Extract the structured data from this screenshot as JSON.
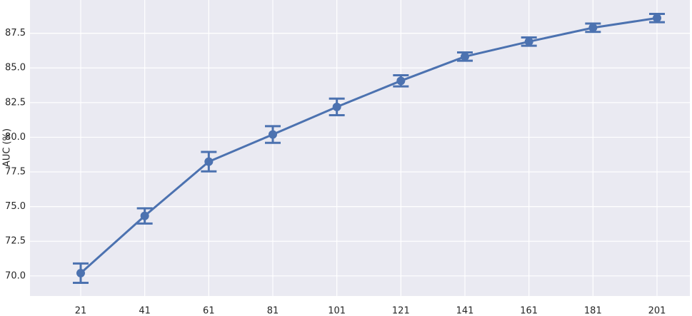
{
  "chart_data": {
    "type": "line",
    "y_label": "AUC (%)",
    "categories": [
      "21",
      "41",
      "61",
      "81",
      "101",
      "121",
      "141",
      "161",
      "181",
      "201"
    ],
    "series": [
      {
        "color": "#4c72b0",
        "values": [
          70.2,
          74.33,
          78.24,
          80.2,
          82.19,
          84.07,
          85.82,
          86.9,
          87.9,
          88.6
        ],
        "errors": [
          0.7,
          0.55,
          0.7,
          0.6,
          0.6,
          0.4,
          0.3,
          0.3,
          0.3,
          0.3
        ]
      }
    ],
    "ylim": [
      68.55,
      89.9
    ],
    "yticks": [
      {
        "value": 70,
        "label": "70.0"
      },
      {
        "value": 72.5,
        "label": "72.5"
      },
      {
        "value": 75,
        "label": "75.0"
      },
      {
        "value": 77.5,
        "label": "77.5"
      },
      {
        "value": 80,
        "label": "80.0"
      },
      {
        "value": 82.5,
        "label": "82.5"
      },
      {
        "value": 85,
        "label": "85.0"
      },
      {
        "value": 87.5,
        "label": "87.5"
      }
    ],
    "grid": true,
    "background": "#eaeaf2"
  }
}
